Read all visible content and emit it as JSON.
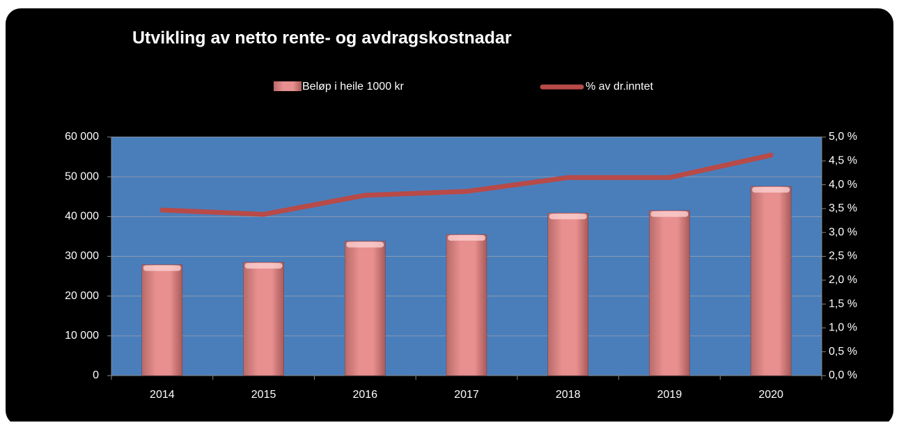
{
  "chart_data": {
    "type": "bar_line",
    "title": "Utvikling av netto rente- og avdragskostnadar",
    "categories": [
      "2014",
      "2015",
      "2016",
      "2017",
      "2018",
      "2019",
      "2020"
    ],
    "series": [
      {
        "name": "Beløp i heile 1000 kr",
        "type": "bar",
        "color": "#e8908f",
        "values": [
          27900,
          28500,
          33800,
          35500,
          40900,
          41500,
          47600
        ]
      },
      {
        "name": "% av dr.inntet",
        "type": "line",
        "axis": "y2",
        "color": "#b84a48",
        "values": [
          3.47,
          3.38,
          3.78,
          3.86,
          4.15,
          4.15,
          4.62
        ]
      }
    ],
    "ylim": [
      0,
      60000
    ],
    "yticks": [
      {
        "value": 0,
        "label": "0"
      },
      {
        "value": 10000,
        "label": "10 000"
      },
      {
        "value": 20000,
        "label": "20 000"
      },
      {
        "value": 30000,
        "label": "30 000"
      },
      {
        "value": 40000,
        "label": "40 000"
      },
      {
        "value": 50000,
        "label": "50 000"
      },
      {
        "value": 60000,
        "label": "60 000"
      }
    ],
    "y2lim": [
      0,
      5
    ],
    "y2ticks": [
      {
        "value": 0,
        "label": "0,0 %"
      },
      {
        "value": 0.5,
        "label": "0,5 %"
      },
      {
        "value": 1,
        "label": "1,0 %"
      },
      {
        "value": 1.5,
        "label": "1,5 %"
      },
      {
        "value": 2,
        "label": "2,0 %"
      },
      {
        "value": 2.5,
        "label": "2,5 %"
      },
      {
        "value": 3,
        "label": "3,0 %"
      },
      {
        "value": 3.5,
        "label": "3,5 %"
      },
      {
        "value": 4,
        "label": "4,0 %"
      },
      {
        "value": 4.5,
        "label": "4,5 %"
      },
      {
        "value": 5,
        "label": "5,0 %"
      }
    ],
    "grid": true
  }
}
